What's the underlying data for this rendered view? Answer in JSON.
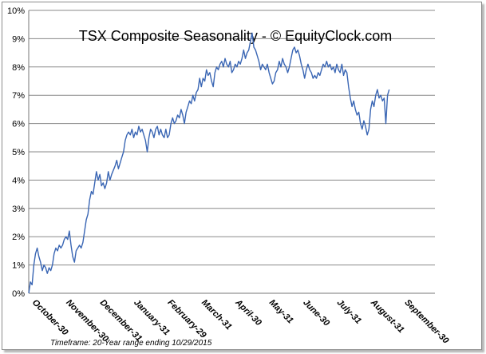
{
  "colors": {
    "line": "#3a66b4",
    "grid": "#8a8a8a",
    "axis": "#777777"
  },
  "chart_data": {
    "type": "line",
    "title": "TSX Composite Seasonality - © EquityClock.com",
    "footnote": "Timeframe: 20-Year range ending  10/29/2015",
    "ylim": [
      0,
      10
    ],
    "yticks": [
      "0%",
      "1%",
      "2%",
      "3%",
      "4%",
      "5%",
      "6%",
      "7%",
      "8%",
      "9%",
      "10%"
    ],
    "xticks": [
      "October-30",
      "November-30",
      "December-31",
      "January-31",
      "February-29",
      "March-31",
      "April-30",
      "May-31",
      "June-30",
      "July-31",
      "August-31",
      "September-30"
    ],
    "xlim": [
      0,
      12
    ],
    "grid": true,
    "series": [
      {
        "values": [
          [
            0.0,
            0.0
          ],
          [
            0.05,
            0.4
          ],
          [
            0.1,
            0.3
          ],
          [
            0.15,
            1.0
          ],
          [
            0.2,
            1.4
          ],
          [
            0.25,
            1.6
          ],
          [
            0.3,
            1.3
          ],
          [
            0.35,
            1.1
          ],
          [
            0.4,
            0.8
          ],
          [
            0.45,
            1.0
          ],
          [
            0.5,
            0.9
          ],
          [
            0.55,
            0.7
          ],
          [
            0.6,
            0.9
          ],
          [
            0.65,
            0.8
          ],
          [
            0.7,
            1.0
          ],
          [
            0.75,
            1.4
          ],
          [
            0.8,
            1.6
          ],
          [
            0.85,
            1.5
          ],
          [
            0.9,
            1.7
          ],
          [
            0.95,
            1.6
          ],
          [
            1.0,
            1.7
          ],
          [
            1.05,
            1.9
          ],
          [
            1.1,
            2.0
          ],
          [
            1.15,
            1.9
          ],
          [
            1.2,
            2.2
          ],
          [
            1.25,
            1.7
          ],
          [
            1.3,
            1.3
          ],
          [
            1.35,
            1.1
          ],
          [
            1.4,
            1.5
          ],
          [
            1.45,
            1.6
          ],
          [
            1.5,
            1.7
          ],
          [
            1.55,
            1.6
          ],
          [
            1.6,
            1.8
          ],
          [
            1.65,
            2.2
          ],
          [
            1.7,
            2.6
          ],
          [
            1.75,
            2.8
          ],
          [
            1.8,
            3.3
          ],
          [
            1.85,
            3.6
          ],
          [
            1.9,
            3.5
          ],
          [
            1.95,
            3.9
          ],
          [
            2.0,
            4.3
          ],
          [
            2.05,
            4.0
          ],
          [
            2.1,
            4.2
          ],
          [
            2.15,
            3.8
          ],
          [
            2.2,
            3.9
          ],
          [
            2.25,
            3.7
          ],
          [
            2.3,
            3.9
          ],
          [
            2.35,
            4.3
          ],
          [
            2.4,
            4.0
          ],
          [
            2.45,
            4.2
          ],
          [
            2.55,
            4.5
          ],
          [
            2.6,
            4.7
          ],
          [
            2.65,
            4.4
          ],
          [
            2.7,
            4.6
          ],
          [
            2.75,
            4.8
          ],
          [
            2.8,
            5.0
          ],
          [
            2.85,
            5.4
          ],
          [
            2.9,
            5.6
          ],
          [
            2.95,
            5.7
          ],
          [
            3.0,
            5.6
          ],
          [
            3.05,
            5.8
          ],
          [
            3.1,
            5.5
          ],
          [
            3.15,
            5.7
          ],
          [
            3.2,
            5.6
          ],
          [
            3.25,
            5.9
          ],
          [
            3.3,
            5.7
          ],
          [
            3.35,
            5.8
          ],
          [
            3.4,
            5.6
          ],
          [
            3.45,
            5.4
          ],
          [
            3.5,
            5.0
          ],
          [
            3.55,
            5.5
          ],
          [
            3.6,
            5.8
          ],
          [
            3.65,
            5.7
          ],
          [
            3.7,
            5.5
          ],
          [
            3.75,
            5.8
          ],
          [
            3.8,
            5.9
          ],
          [
            3.85,
            5.6
          ],
          [
            3.9,
            5.8
          ],
          [
            3.95,
            5.6
          ],
          [
            4.0,
            5.5
          ],
          [
            4.05,
            5.8
          ],
          [
            4.1,
            5.5
          ],
          [
            4.15,
            5.6
          ],
          [
            4.2,
            6.0
          ],
          [
            4.25,
            6.2
          ],
          [
            4.3,
            6.0
          ],
          [
            4.35,
            6.1
          ],
          [
            4.4,
            6.3
          ],
          [
            4.45,
            6.2
          ],
          [
            4.5,
            6.5
          ],
          [
            4.55,
            6.3
          ],
          [
            4.6,
            6.0
          ],
          [
            4.65,
            6.4
          ],
          [
            4.7,
            6.6
          ],
          [
            4.75,
            6.8
          ],
          [
            4.8,
            6.7
          ],
          [
            4.85,
            7.0
          ],
          [
            4.9,
            6.8
          ],
          [
            4.95,
            7.1
          ],
          [
            5.0,
            7.2
          ],
          [
            5.05,
            7.6
          ],
          [
            5.1,
            7.3
          ],
          [
            5.15,
            7.6
          ],
          [
            5.2,
            7.5
          ],
          [
            5.25,
            7.9
          ],
          [
            5.3,
            7.7
          ],
          [
            5.35,
            7.8
          ],
          [
            5.4,
            7.5
          ],
          [
            5.45,
            7.3
          ],
          [
            5.5,
            7.8
          ],
          [
            5.55,
            8.0
          ],
          [
            5.6,
            7.9
          ],
          [
            5.65,
            8.1
          ],
          [
            5.7,
            8.2
          ],
          [
            5.75,
            8.0
          ],
          [
            5.8,
            8.3
          ],
          [
            5.85,
            8.1
          ],
          [
            5.9,
            8.0
          ],
          [
            5.95,
            8.2
          ],
          [
            6.0,
            7.8
          ],
          [
            6.05,
            7.9
          ],
          [
            6.1,
            8.1
          ],
          [
            6.15,
            8.0
          ],
          [
            6.2,
            8.2
          ],
          [
            6.25,
            8.1
          ],
          [
            6.3,
            8.3
          ],
          [
            6.35,
            8.6
          ],
          [
            6.4,
            8.3
          ],
          [
            6.45,
            8.5
          ],
          [
            6.5,
            8.6
          ],
          [
            6.55,
            8.9
          ],
          [
            6.6,
            9.2
          ],
          [
            6.65,
            8.7
          ],
          [
            6.7,
            8.6
          ],
          [
            6.75,
            8.4
          ],
          [
            6.8,
            8.2
          ],
          [
            6.85,
            7.9
          ],
          [
            6.9,
            8.1
          ],
          [
            6.95,
            8.0
          ],
          [
            7.0,
            7.9
          ],
          [
            7.05,
            8.1
          ],
          [
            7.1,
            7.8
          ],
          [
            7.15,
            7.6
          ],
          [
            7.2,
            7.4
          ],
          [
            7.25,
            7.5
          ],
          [
            7.3,
            7.8
          ],
          [
            7.35,
            7.9
          ],
          [
            7.4,
            8.2
          ],
          [
            7.45,
            8.0
          ],
          [
            7.5,
            8.3
          ],
          [
            7.55,
            8.1
          ],
          [
            7.6,
            8.0
          ],
          [
            7.65,
            7.8
          ],
          [
            7.7,
            8.0
          ],
          [
            7.75,
            8.3
          ],
          [
            7.8,
            8.6
          ],
          [
            7.85,
            8.7
          ],
          [
            7.9,
            8.5
          ],
          [
            7.95,
            8.6
          ],
          [
            8.0,
            8.4
          ],
          [
            8.05,
            8.1
          ],
          [
            8.1,
            7.9
          ],
          [
            8.15,
            7.6
          ],
          [
            8.2,
            7.9
          ],
          [
            8.25,
            8.1
          ],
          [
            8.3,
            7.9
          ],
          [
            8.35,
            7.8
          ],
          [
            8.4,
            7.6
          ],
          [
            8.45,
            7.7
          ],
          [
            8.5,
            7.6
          ],
          [
            8.55,
            7.8
          ],
          [
            8.6,
            7.7
          ],
          [
            8.65,
            7.9
          ],
          [
            8.7,
            8.1
          ],
          [
            8.75,
            8.0
          ],
          [
            8.8,
            8.2
          ],
          [
            8.85,
            8.0
          ],
          [
            8.9,
            8.1
          ],
          [
            8.95,
            7.9
          ],
          [
            9.0,
            8.0
          ],
          [
            9.05,
            7.8
          ],
          [
            9.1,
            8.1
          ],
          [
            9.15,
            7.9
          ],
          [
            9.2,
            7.8
          ],
          [
            9.25,
            8.1
          ],
          [
            9.3,
            7.7
          ],
          [
            9.35,
            7.9
          ],
          [
            9.4,
            7.8
          ],
          [
            9.45,
            7.3
          ],
          [
            9.5,
            6.9
          ],
          [
            9.55,
            6.6
          ],
          [
            9.6,
            6.8
          ],
          [
            9.65,
            6.5
          ],
          [
            9.7,
            6.3
          ],
          [
            9.75,
            6.4
          ],
          [
            9.8,
            6.0
          ],
          [
            9.85,
            5.8
          ],
          [
            9.9,
            6.1
          ],
          [
            9.95,
            5.9
          ],
          [
            10.0,
            5.6
          ],
          [
            10.05,
            5.8
          ],
          [
            10.1,
            6.5
          ],
          [
            10.15,
            6.8
          ],
          [
            10.2,
            6.6
          ],
          [
            10.25,
            7.0
          ],
          [
            10.3,
            7.2
          ],
          [
            10.35,
            6.9
          ],
          [
            10.4,
            7.0
          ],
          [
            10.45,
            6.8
          ],
          [
            10.5,
            6.9
          ],
          [
            10.55,
            6.0
          ],
          [
            10.6,
            7.0
          ],
          [
            10.65,
            7.2
          ]
        ]
      }
    ]
  }
}
